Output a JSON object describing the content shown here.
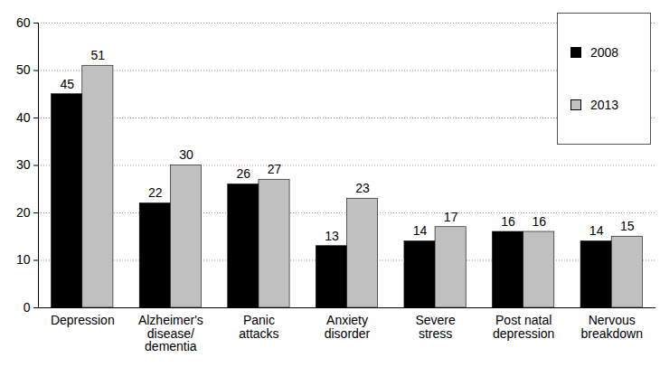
{
  "chart_data": {
    "type": "bar",
    "categories": [
      "Depression",
      "Alzheimer's\ndisease/\ndementia",
      "Panic\nattacks",
      "Anxiety\ndisorder",
      "Severe\nstress",
      "Post natal\ndepression",
      "Nervous\nbreakdown"
    ],
    "series": [
      {
        "name": "2008",
        "color": "#000000",
        "values": [
          45,
          22,
          26,
          13,
          14,
          16,
          14
        ]
      },
      {
        "name": "2013",
        "color": "#c0c0c0",
        "values": [
          51,
          30,
          27,
          23,
          17,
          16,
          15
        ]
      }
    ],
    "ylim": [
      0,
      60
    ],
    "yticks": [
      0,
      10,
      20,
      30,
      40,
      50,
      60
    ],
    "grid": true,
    "data_labels": true,
    "legend": "top-right"
  }
}
